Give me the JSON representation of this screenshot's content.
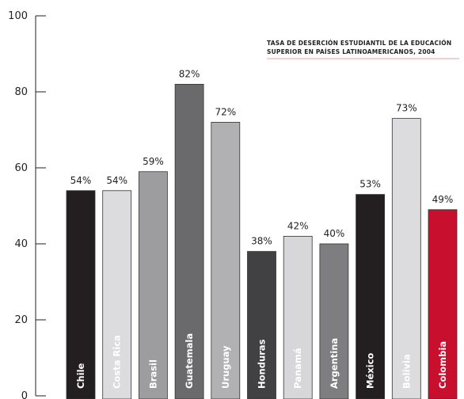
{
  "chart_data": {
    "type": "bar",
    "title_lines": [
      "TASA DE DESERCIÓN ESTUDIANTIL DE LA EDUCACIÓN",
      "SUPERIOR EN PAÍSES LATINOAMERICANOS, 2004"
    ],
    "categories": [
      "Chile",
      "Costa Rica",
      "Brasil",
      "Guatemala",
      "Uruguay",
      "Honduras",
      "Panamá",
      "Argentina",
      "México",
      "Bolivia",
      "Colombia"
    ],
    "values": [
      54,
      54,
      59,
      82,
      72,
      38,
      42,
      40,
      53,
      73,
      49
    ],
    "value_labels": [
      "54%",
      "54%",
      "59%",
      "82%",
      "72%",
      "38%",
      "42%",
      "40%",
      "53%",
      "73%",
      "49%"
    ],
    "bar_colors": [
      "#231f20",
      "#dcdcde",
      "#9d9d9f",
      "#6a6a6c",
      "#b1b1b3",
      "#414143",
      "#d7d7d9",
      "#7e7e80",
      "#231f20",
      "#dcdcde",
      "#c8102e"
    ],
    "ylim": [
      0,
      100
    ],
    "yticks": [
      0,
      20,
      40,
      60,
      80,
      100
    ],
    "ytick_labels": [
      "0",
      "20",
      "40",
      "60",
      "80",
      "100"
    ],
    "grid": false,
    "accent_rule_color": "#e8a0a8"
  }
}
